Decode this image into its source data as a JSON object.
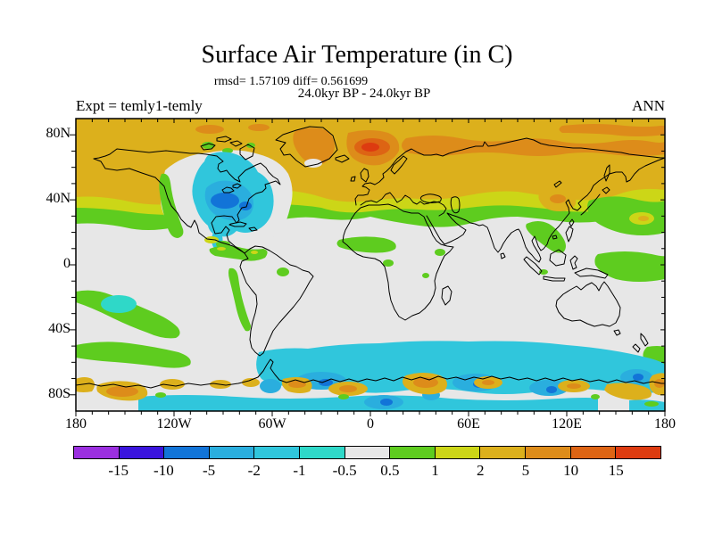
{
  "figure": {
    "title": "Surface Air Temperature (in C)",
    "stats_line": "rmsd= 1.57109 diff= 0.561699",
    "period_line": "24.0kyr BP - 24.0kyr BP",
    "experiment_label": "Expt = temly1-temly",
    "season_label": "ANN"
  },
  "axes": {
    "lat_ticks": [
      {
        "label": "80N",
        "lat": 80
      },
      {
        "label": "40N",
        "lat": 40
      },
      {
        "label": "0",
        "lat": 0
      },
      {
        "label": "40S",
        "lat": -40
      },
      {
        "label": "80S",
        "lat": -80
      }
    ],
    "lon_ticks": [
      {
        "label": "180",
        "lon": -180
      },
      {
        "label": "120W",
        "lon": -120
      },
      {
        "label": "60W",
        "lon": -60
      },
      {
        "label": "0",
        "lon": 0
      },
      {
        "label": "60E",
        "lon": 60
      },
      {
        "label": "120E",
        "lon": 120
      },
      {
        "label": "180",
        "lon": 180
      }
    ]
  },
  "palette": {
    "purple": "#9b2fe0",
    "indigo": "#3a14dd",
    "blue": "#1274d8",
    "lightblue": "#2aaede",
    "cyan": "#30c6dc",
    "turquoise": "#2fd8c8",
    "gray": "#e7e7e7",
    "green": "#5ecc1f",
    "yellowgreen": "#ccd617",
    "gold": "#dcb01c",
    "orange": "#dd8c1a",
    "darkorange": "#dd6414",
    "red": "#dd3b10"
  },
  "colorbar": {
    "segment_colors": [
      "#9b2fe0",
      "#3a14dd",
      "#1274d8",
      "#2aaede",
      "#30c6dc",
      "#2fd8c8",
      "#e7e7e7",
      "#5ecc1f",
      "#ccd617",
      "#dcb01c",
      "#dd8c1a",
      "#dd6414",
      "#dd3b10"
    ],
    "boundary_labels": [
      "-15",
      "-10",
      "-5",
      "-2",
      "-1",
      "-0.5",
      "0.5",
      "1",
      "2",
      "5",
      "10",
      "15"
    ]
  },
  "chart_data": {
    "type": "heatmap",
    "subtype": "filled contour anomaly map, equirectangular world projection",
    "title": "Surface Air Temperature (in C)",
    "statistics": {
      "rmsd": 1.57109,
      "diff": 0.561699
    },
    "comparison": "24.0kyr BP - 24.0kyr BP",
    "experiment": "temly1-temly",
    "season": "ANN",
    "units": "degrees C (difference)",
    "lon_range": [
      -180,
      180
    ],
    "lat_range": [
      -90,
      90
    ],
    "lon_tick_labels": [
      "180",
      "120W",
      "60W",
      "0",
      "60E",
      "120E",
      "180"
    ],
    "lat_tick_labels": [
      "80N",
      "40N",
      "0",
      "40S",
      "80S"
    ],
    "contour_levels": [
      -15,
      -10,
      -5,
      -2,
      -1,
      -0.5,
      0.5,
      1,
      2,
      5,
      10,
      15
    ],
    "level_colors": [
      "#9b2fe0",
      "#3a14dd",
      "#1274d8",
      "#2aaede",
      "#30c6dc",
      "#2fd8c8",
      "#e7e7e7",
      "#5ecc1f",
      "#ccd617",
      "#dcb01c",
      "#dd8c1a",
      "#dd6414",
      "#dd3b10"
    ],
    "anomaly_regions": [
      {
        "region": "Arctic and northern high latitudes poleward of ~45N",
        "value_range": "+2 to +5"
      },
      {
        "region": "Siberian Arctic coast, Greenland, Arctic island fringes",
        "value_range": "+5 to +10"
      },
      {
        "region": "Norwegian Sea / Scandinavia warm maximum",
        "value_range": "+10 to >+15"
      },
      {
        "region": "Eastern North America cold anomaly (Great Lakes to Gulf)",
        "value_range": "-1 to -2, ring -2 to -5, core -5 to -10"
      },
      {
        "region": "Northern hemisphere ~28-45N transition band",
        "value_range": "+0.5 to +2"
      },
      {
        "region": "Tropics and subtropics",
        "value_range": "-0.5 to +0.5 with scattered +0.5 to +1 patches (Sahel, Andes, SE Asia, W Pacific)"
      },
      {
        "region": "Korea / Japan patch",
        "value_range": "+2 to +10"
      },
      {
        "region": "Southern Ocean band ~50-75S",
        "value_range": "-1 to -2 with patches -2 to -10"
      },
      {
        "region": "Antarctic coastline spots",
        "value_range": "+2 to +10"
      },
      {
        "region": "South Pacific diagonal band and ~50S band",
        "value_range": "+0.5 to +1"
      }
    ]
  }
}
